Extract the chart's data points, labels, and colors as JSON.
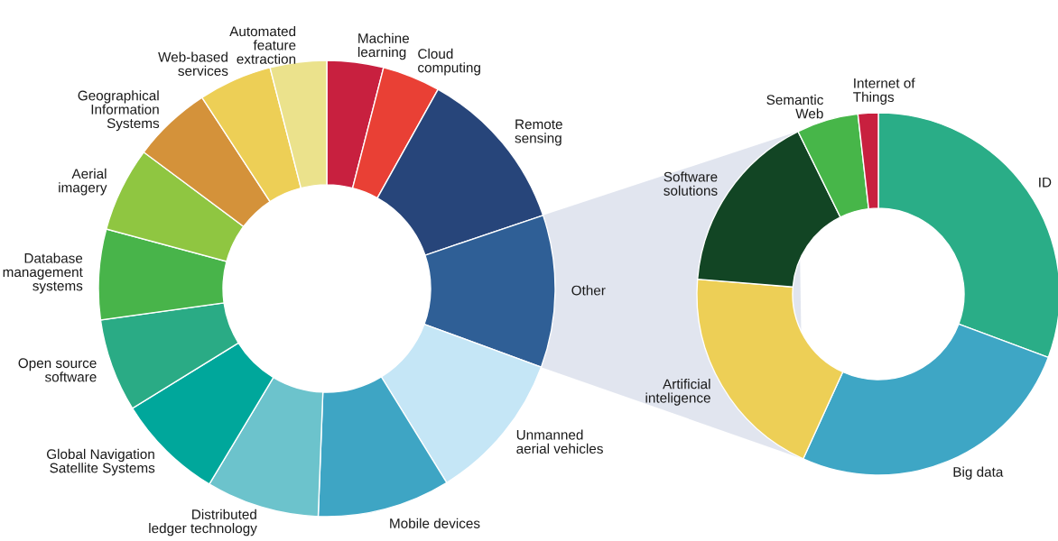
{
  "chart_data": [
    {
      "type": "donut",
      "categories": [
        "Machine\nlearning",
        "Cloud\ncomputing",
        "Remote\nsensing",
        "Other",
        "Unmanned\naerial vehicles",
        "Mobile devices",
        "Distributed\nledger technology",
        "Global Navigation\nSatellite Systems",
        "Open source\nsoftware",
        "Database\nmanagement\nsystems",
        "Aerial\nimagery",
        "Geographical\nInformation\nSystems",
        "Web-based\nservices",
        "Automated\nfeature\nextraction"
      ],
      "values": [
        4.0,
        4.1,
        11.7,
        10.8,
        10.6,
        9.4,
        8.0,
        7.6,
        6.6,
        6.4,
        6.0,
        5.6,
        5.2,
        4.0
      ],
      "colors": [
        "#c8203f",
        "#e94035",
        "#27457a",
        "#2f5f96",
        "#c5e6f6",
        "#3ea5c4",
        "#6cc3cc",
        "#00a79b",
        "#2aab85",
        "#48b44a",
        "#8fc641",
        "#d4923a",
        "#edcf56",
        "#ebe28c"
      ]
    },
    {
      "type": "donut",
      "categories": [
        "ID",
        "Big data",
        "Artificial\ninteligence",
        "Software\nsolutions",
        "Semantic\nWeb",
        "Internet of\nThings"
      ],
      "values": [
        30.7,
        26.1,
        19.5,
        16.4,
        5.5,
        1.8
      ],
      "colors": [
        "#2aad87",
        "#3ea6c5",
        "#edcf56",
        "#124524",
        "#47b649",
        "#c8203f"
      ]
    }
  ]
}
